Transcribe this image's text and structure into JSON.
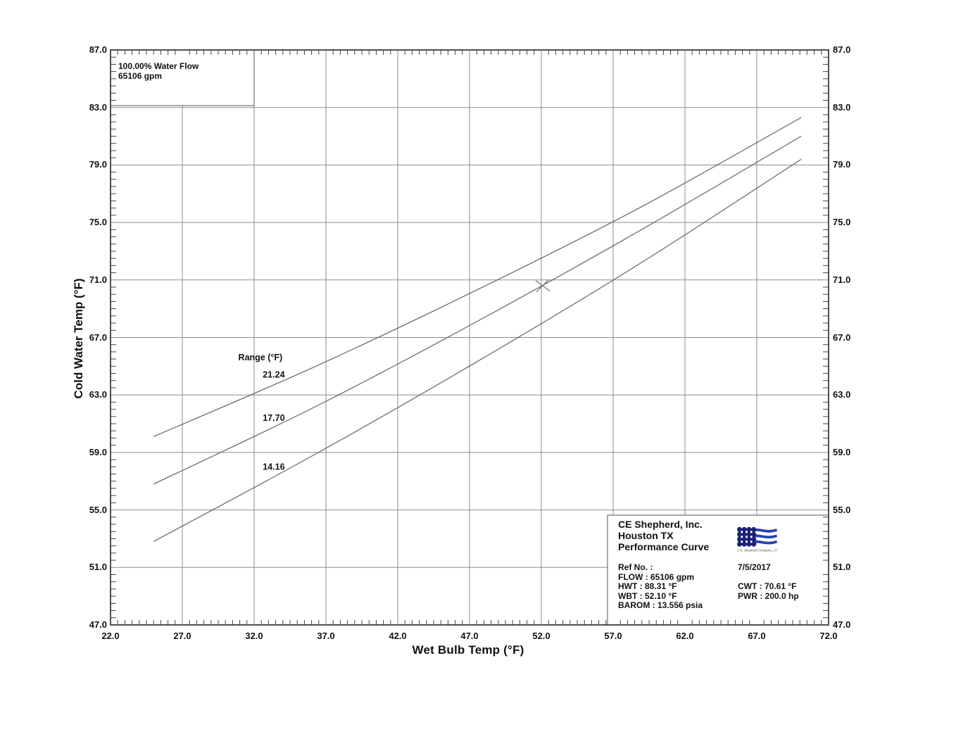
{
  "chart_data": {
    "type": "line",
    "xlabel": "Wet Bulb Temp (°F)",
    "ylabel": "Cold Water Temp (°F)",
    "xlim": [
      22.0,
      72.0
    ],
    "ylim": [
      47.0,
      87.0
    ],
    "x_major_step": 5.0,
    "y_major_step": 4.0,
    "minor_step": 0.5,
    "grid": true,
    "x_tick_labels": [
      "22.0",
      "27.0",
      "32.0",
      "37.0",
      "42.0",
      "47.0",
      "52.0",
      "57.0",
      "62.0",
      "67.0",
      "72.0"
    ],
    "y_tick_labels": [
      "47.0",
      "51.0",
      "55.0",
      "59.0",
      "63.0",
      "67.0",
      "71.0",
      "75.0",
      "79.0",
      "83.0",
      "87.0"
    ],
    "series": [
      {
        "name": "21.24",
        "points": [
          [
            25.0,
            60.1
          ],
          [
            36.3,
            65.0
          ],
          [
            47.5,
            70.3
          ],
          [
            58.8,
            76.0
          ],
          [
            70.1,
            82.3
          ]
        ]
      },
      {
        "name": "17.70",
        "points": [
          [
            25.0,
            56.8
          ],
          [
            36.3,
            62.2
          ],
          [
            47.5,
            68.1
          ],
          [
            58.8,
            74.4
          ],
          [
            70.1,
            81.0
          ]
        ]
      },
      {
        "name": "14.16",
        "points": [
          [
            25.0,
            52.8
          ],
          [
            36.3,
            58.9
          ],
          [
            47.5,
            65.3
          ],
          [
            58.8,
            72.1
          ],
          [
            70.1,
            79.4
          ]
        ]
      }
    ],
    "series_labels": {
      "title": {
        "text": "Range (°F)",
        "wbt": 30.9,
        "cwt": 65.4
      },
      "items": [
        {
          "text": "21.24",
          "wbt": 32.6,
          "cwt": 64.2
        },
        {
          "text": "17.70",
          "wbt": 32.6,
          "cwt": 61.2
        },
        {
          "text": "14.16",
          "wbt": 32.6,
          "cwt": 57.8
        }
      ]
    },
    "marker": {
      "wbt": 52.1,
      "cwt": 70.61,
      "symbol": "x"
    }
  },
  "flow_legend": {
    "line1": "100.00% Water Flow",
    "line2": "65106 gpm"
  },
  "info_box": {
    "company": "CE Shepherd, Inc.",
    "city": "Houston TX",
    "title": "Performance Curve",
    "logo_caption": "C.E. Shepherd Company, L.P.",
    "left_lines": [
      "Ref No. :",
      "FLOW : 65106 gpm",
      "HWT : 88.31 °F",
      "WBT : 52.10 °F",
      "BAROM : 13.556 psia"
    ],
    "right_lines": [
      "7/5/2017",
      "",
      "CWT : 70.61 °F",
      "PWR : 200.0 hp"
    ]
  },
  "colors": {
    "grid": "#8c8c8c",
    "curve": "#636363",
    "border": "#3d3d3d",
    "marker": "#7a7a7a",
    "text": "#111111",
    "logo_navy": "#1b2077",
    "logo_blue": "#2741b0"
  }
}
